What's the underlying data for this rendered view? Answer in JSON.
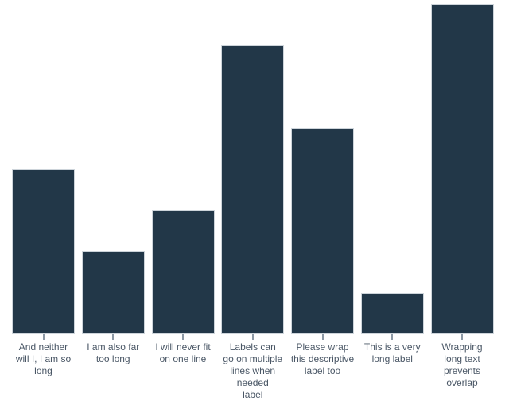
{
  "canvas": {
    "background": "#ffffff"
  },
  "chart_data": {
    "type": "bar",
    "title": "",
    "xlabel": "",
    "ylabel": "",
    "categories": [
      "And neither will I, I am so long",
      "I am also far too long",
      "I will never fit on one line",
      "Labels can go on multiple lines when needed label",
      "Please wrap this descriptive label too",
      "This is a very long label",
      "Wrapping long text prevents overlap"
    ],
    "values": [
      4,
      2,
      3,
      7,
      5,
      1,
      8
    ],
    "ylim": [
      0,
      8
    ],
    "grid": false,
    "legend": false,
    "y_axis_visible": false,
    "x_axis_line_visible": false,
    "x_tick_labels_wrapped": [
      "And neither\nwill I, I am so\nlong",
      "I am also far\ntoo long",
      "I will never fit\non one line",
      "Labels can\ngo on multiple\nlines when\nneeded\nlabel",
      "Please wrap\nthis descriptive\nlabel too",
      "This is a very\nlong label",
      "Wrapping\nlong text\nprevents\noverlap"
    ],
    "colors": {
      "bar_fill": "#223748",
      "bar_stroke": "#cdd4da",
      "tick": "#8d99a5",
      "label_text": "#4a5766"
    }
  }
}
